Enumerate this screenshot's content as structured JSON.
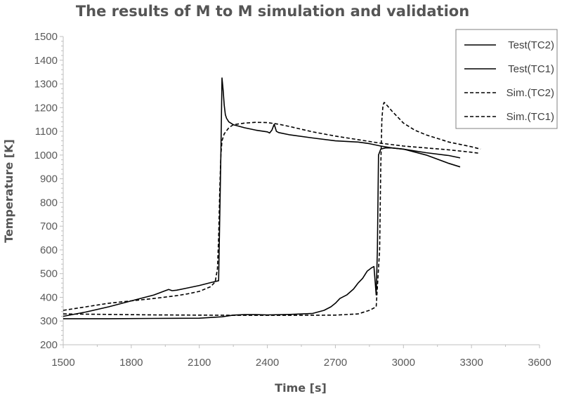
{
  "chart_data": {
    "type": "line",
    "title": "The results of M to M simulation and validation",
    "xlabel": "Time [s]",
    "ylabel": "Temperature [K]",
    "xlim": [
      1500,
      3600
    ],
    "ylim": [
      200,
      1500
    ],
    "xticks": [
      "1500",
      "1800",
      "2100",
      "2400",
      "2700",
      "3000",
      "3300",
      "3600"
    ],
    "yticks": [
      "200",
      "300",
      "400",
      "500",
      "600",
      "700",
      "800",
      "900",
      "1000",
      "1100",
      "1200",
      "1300",
      "1400",
      "1500"
    ],
    "grid": false,
    "legend_position": "top-right",
    "series": [
      {
        "name": "Test(TC2)",
        "style": "solid",
        "color": "#000000",
        "x": [
          1500,
          1700,
          1900,
          2100,
          2200,
          2250,
          2300,
          2350,
          2400,
          2500,
          2600,
          2650,
          2680,
          2700,
          2720,
          2750,
          2780,
          2800,
          2820,
          2840,
          2860,
          2870,
          2875,
          2880,
          2885,
          2890,
          2900,
          2920,
          2950,
          3000,
          3100,
          3200,
          3250
        ],
        "y": [
          310,
          310,
          311,
          312,
          318,
          325,
          327,
          327,
          326,
          328,
          332,
          345,
          360,
          375,
          395,
          410,
          435,
          460,
          480,
          510,
          525,
          530,
          470,
          410,
          600,
          1000,
          1025,
          1030,
          1030,
          1025,
          1000,
          965,
          950
        ]
      },
      {
        "name": "Test(TC1)",
        "style": "solid",
        "color": "#000000",
        "x": [
          1500,
          1600,
          1700,
          1800,
          1900,
          1950,
          1965,
          1980,
          2000,
          2050,
          2100,
          2150,
          2185,
          2195,
          2200,
          2205,
          2210,
          2215,
          2220,
          2230,
          2250,
          2300,
          2350,
          2400,
          2410,
          2420,
          2430,
          2440,
          2450,
          2500,
          2600,
          2700,
          2800,
          2850,
          2900,
          2950,
          3000,
          3100,
          3200,
          3250
        ],
        "y": [
          320,
          338,
          360,
          385,
          410,
          428,
          433,
          428,
          430,
          440,
          450,
          462,
          470,
          1000,
          1325,
          1275,
          1210,
          1170,
          1155,
          1140,
          1128,
          1115,
          1105,
          1098,
          1093,
          1105,
          1130,
          1100,
          1095,
          1085,
          1072,
          1060,
          1055,
          1048,
          1038,
          1030,
          1025,
          1010,
          998,
          988
        ]
      },
      {
        "name": "Sim.(TC2)",
        "style": "dashed",
        "color": "#000000",
        "x": [
          1500,
          1700,
          1900,
          2100,
          2300,
          2500,
          2700,
          2800,
          2850,
          2880,
          2895,
          2900,
          2905,
          2910,
          2915,
          2920,
          2950,
          3000,
          3050,
          3100,
          3200,
          3300,
          3340
        ],
        "y": [
          330,
          328,
          326,
          325,
          324,
          324,
          325,
          330,
          345,
          360,
          600,
          950,
          1150,
          1210,
          1222,
          1218,
          1185,
          1135,
          1105,
          1085,
          1055,
          1035,
          1025
        ]
      },
      {
        "name": "Sim.(TC1)",
        "style": "dashed",
        "color": "#000000",
        "x": [
          1500,
          1600,
          1700,
          1800,
          1900,
          2000,
          2050,
          2100,
          2150,
          2170,
          2180,
          2185,
          2190,
          2195,
          2200,
          2210,
          2230,
          2250,
          2300,
          2350,
          2400,
          2450,
          2500,
          2600,
          2700,
          2800,
          2900,
          3000,
          3100,
          3200,
          3300,
          3330
        ],
        "y": [
          345,
          360,
          375,
          385,
          395,
          407,
          415,
          425,
          445,
          465,
          520,
          650,
          850,
          1000,
          1060,
          1090,
          1115,
          1128,
          1135,
          1138,
          1137,
          1130,
          1120,
          1098,
          1080,
          1065,
          1050,
          1038,
          1030,
          1022,
          1012,
          1008
        ]
      }
    ]
  }
}
